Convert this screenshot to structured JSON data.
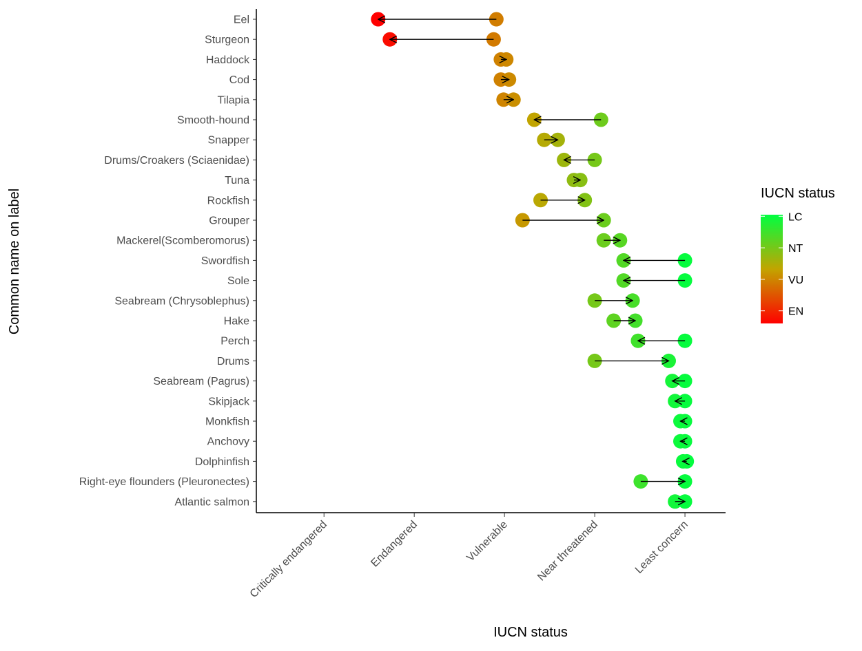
{
  "chart_data": {
    "type": "scatter",
    "xlabel": "IUCN status",
    "ylabel": "Common name on label",
    "x_categories": [
      "Critically endangered",
      "Endangered",
      "Vulnerable",
      "Near threatened",
      "Least concern"
    ],
    "xlim": [
      0.25,
      5.45
    ],
    "grid": false,
    "legend": {
      "title": "IUCN status",
      "position": "right",
      "labels": [
        "LC",
        "NT",
        "VU",
        "EN"
      ],
      "label_values": [
        5,
        4,
        3,
        2
      ],
      "range": [
        1.6,
        5.05
      ],
      "colors": {
        "low": "#ff0000",
        "mid": "#c2a400",
        "high": "#00ff40"
      }
    },
    "series": [
      {
        "name": "Eel",
        "from": 2.91,
        "to": 1.6
      },
      {
        "name": "Sturgeon",
        "from": 2.88,
        "to": 1.73
      },
      {
        "name": "Haddock",
        "from": 2.96,
        "to": 3.02
      },
      {
        "name": "Cod",
        "from": 2.96,
        "to": 3.05
      },
      {
        "name": "Tilapia",
        "from": 2.99,
        "to": 3.1
      },
      {
        "name": "Smooth-hound",
        "from": 4.07,
        "to": 3.33
      },
      {
        "name": "Snapper",
        "from": 3.44,
        "to": 3.59
      },
      {
        "name": "Drums/Croakers (Sciaenidae)",
        "from": 4.0,
        "to": 3.66
      },
      {
        "name": "Tuna",
        "from": 3.77,
        "to": 3.84
      },
      {
        "name": "Rockfish",
        "from": 3.4,
        "to": 3.89
      },
      {
        "name": "Grouper",
        "from": 3.2,
        "to": 4.1
      },
      {
        "name": "Mackerel(Scomberomorus)",
        "from": 4.1,
        "to": 4.28
      },
      {
        "name": "Swordfish",
        "from": 5.0,
        "to": 4.32
      },
      {
        "name": "Sole",
        "from": 5.0,
        "to": 4.32
      },
      {
        "name": "Seabream (Chrysoblephus)",
        "from": 4.0,
        "to": 4.42
      },
      {
        "name": "Hake",
        "from": 4.21,
        "to": 4.45
      },
      {
        "name": "Perch",
        "from": 5.0,
        "to": 4.48
      },
      {
        "name": "Drums",
        "from": 4.0,
        "to": 4.82
      },
      {
        "name": "Seabream (Pagrus)",
        "from": 5.0,
        "to": 4.86
      },
      {
        "name": "Skipjack",
        "from": 5.0,
        "to": 4.89
      },
      {
        "name": "Monkfish",
        "from": 5.0,
        "to": 4.95
      },
      {
        "name": "Anchovy",
        "from": 5.0,
        "to": 4.95
      },
      {
        "name": "Dolphinfish",
        "from": 5.02,
        "to": 4.98
      },
      {
        "name": "Right-eye flounders (Pleuronectes)",
        "from": 4.51,
        "to": 5.0
      },
      {
        "name": "Atlantic salmon",
        "from": 4.89,
        "to": 5.0
      }
    ]
  }
}
